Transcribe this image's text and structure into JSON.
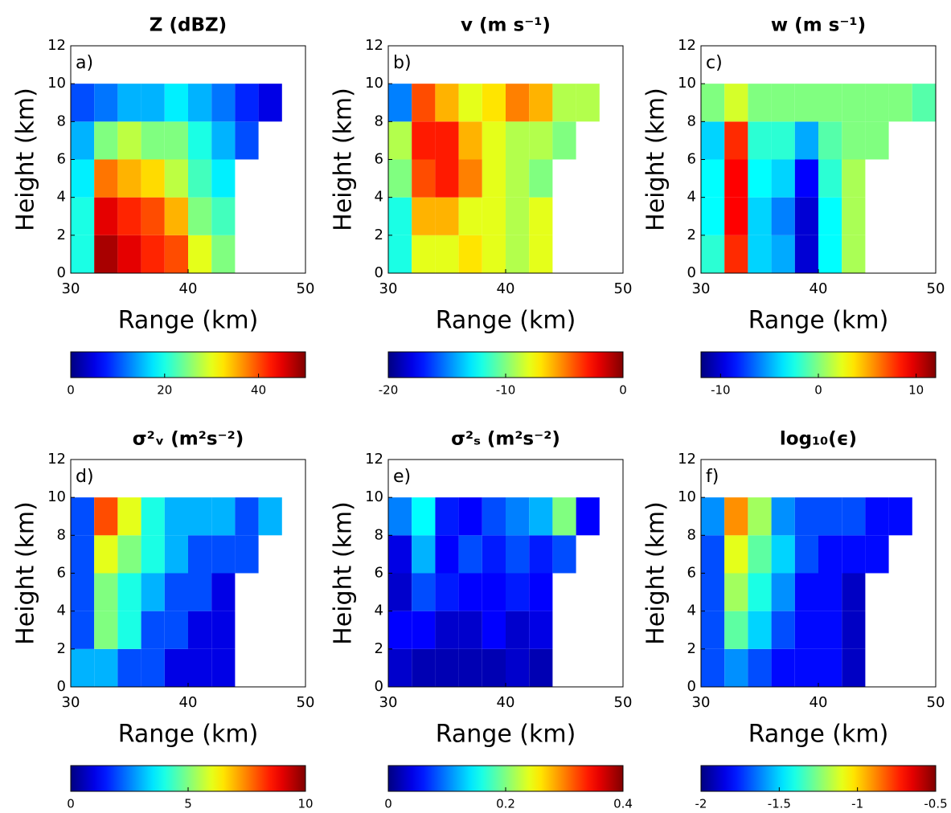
{
  "chart_data": [
    {
      "type": "heatmap",
      "title": "Z  (dBZ)",
      "panel_label": "a)",
      "x_label": "Range (km)",
      "y_label": "Height (km)",
      "xlim": [
        30,
        50
      ],
      "xticks": [
        30,
        40,
        50
      ],
      "ylim": [
        0,
        12
      ],
      "yticks": [
        0,
        2,
        4,
        6,
        8,
        10,
        12
      ],
      "x": [
        31,
        33,
        35,
        37,
        39,
        41,
        43,
        45,
        47,
        49
      ],
      "y": [
        1,
        3,
        5,
        7,
        9,
        11
      ],
      "z": [
        [
          20,
          48,
          45,
          42,
          40,
          30,
          25,
          null,
          null,
          null
        ],
        [
          20,
          45,
          42,
          40,
          35,
          25,
          22,
          null,
          null,
          null
        ],
        [
          18,
          38,
          35,
          33,
          28,
          22,
          18,
          null,
          null,
          null
        ],
        [
          15,
          25,
          28,
          25,
          25,
          20,
          15,
          10,
          null,
          null
        ],
        [
          10,
          12,
          15,
          15,
          18,
          15,
          12,
          8,
          5,
          null
        ],
        [
          null,
          null,
          null,
          null,
          null,
          null,
          null,
          null,
          null,
          null
        ]
      ],
      "colormap": "jet",
      "clim": [
        0,
        50
      ],
      "cticks": [
        0,
        20,
        40
      ]
    },
    {
      "type": "heatmap",
      "title": "v  (m s⁻¹)",
      "panel_label": "b)",
      "x_label": "Range (km)",
      "y_label": "Height (km)",
      "xlim": [
        30,
        50
      ],
      "xticks": [
        30,
        40,
        50
      ],
      "ylim": [
        0,
        12
      ],
      "yticks": [
        0,
        2,
        4,
        6,
        8,
        10,
        12
      ],
      "x": [
        31,
        33,
        35,
        37,
        39,
        41,
        43,
        45,
        47,
        49
      ],
      "y": [
        1,
        3,
        5,
        7,
        9,
        11
      ],
      "z": [
        [
          -12,
          -8,
          -8,
          -7,
          -8,
          -9,
          -8,
          null,
          null,
          null
        ],
        [
          -12,
          -6,
          -6,
          -8,
          -8,
          -9,
          -8,
          null,
          null,
          null
        ],
        [
          -10,
          -4,
          -3,
          -5,
          -8,
          -9,
          -10,
          null,
          null,
          null
        ],
        [
          -9,
          -3,
          -3,
          -6,
          -8,
          -9,
          -9,
          -10,
          null,
          null
        ],
        [
          -15,
          -4,
          -6,
          -8,
          -7,
          -5,
          -6,
          -9,
          -9,
          null
        ],
        [
          null,
          null,
          null,
          null,
          null,
          null,
          null,
          null,
          null,
          null
        ]
      ],
      "colormap": "jet",
      "clim": [
        -20,
        0
      ],
      "cticks": [
        -20,
        -10,
        0
      ]
    },
    {
      "type": "heatmap",
      "title": "w  (m s⁻¹)",
      "panel_label": "c)",
      "x_label": "Range (km)",
      "y_label": "Height (km)",
      "xlim": [
        30,
        50
      ],
      "xticks": [
        30,
        40,
        50
      ],
      "ylim": [
        0,
        12
      ],
      "yticks": [
        0,
        2,
        4,
        6,
        8,
        10,
        12
      ],
      "x": [
        31,
        33,
        35,
        37,
        39,
        41,
        43,
        45,
        47,
        49
      ],
      "y": [
        1,
        3,
        5,
        7,
        9,
        11
      ],
      "z": [
        [
          -2,
          8,
          -4,
          -5,
          -10,
          -3,
          1,
          null,
          null,
          null
        ],
        [
          -3,
          9,
          -4,
          -6,
          -10,
          -3,
          1,
          null,
          null,
          null
        ],
        [
          -3,
          9,
          -3,
          -4,
          -9,
          -2,
          1,
          null,
          null,
          null
        ],
        [
          -4,
          8,
          -2,
          -2,
          -5,
          -1,
          0,
          0,
          null,
          null
        ],
        [
          0,
          2,
          0,
          0,
          0,
          0,
          0,
          0,
          0,
          -1
        ],
        [
          null,
          null,
          null,
          null,
          null,
          null,
          null,
          null,
          null,
          null
        ]
      ],
      "colormap": "jet",
      "clim": [
        -12,
        12
      ],
      "cticks": [
        -10,
        0,
        10
      ]
    },
    {
      "type": "heatmap",
      "title": "σ²ᵥ  (m²s⁻²)",
      "panel_label": "d)",
      "x_label": "Range (km)",
      "y_label": "Height (km)",
      "xlim": [
        30,
        50
      ],
      "xticks": [
        30,
        40,
        50
      ],
      "ylim": [
        0,
        12
      ],
      "yticks": [
        0,
        2,
        4,
        6,
        8,
        10,
        12
      ],
      "x": [
        31,
        33,
        35,
        37,
        39,
        41,
        43,
        45,
        47,
        49
      ],
      "y": [
        1,
        3,
        5,
        7,
        9,
        11
      ],
      "z": [
        [
          3,
          3,
          2,
          2,
          1,
          1,
          1,
          null,
          null,
          null
        ],
        [
          2,
          5,
          4,
          2,
          2,
          1,
          1,
          null,
          null,
          null
        ],
        [
          2,
          5,
          4,
          3,
          2,
          2,
          1,
          null,
          null,
          null
        ],
        [
          2,
          6,
          5,
          4,
          3,
          2,
          2,
          2,
          null,
          null
        ],
        [
          2,
          8,
          6,
          4,
          3,
          3,
          3,
          2,
          3,
          null
        ],
        [
          null,
          null,
          null,
          null,
          null,
          null,
          null,
          null,
          null,
          null
        ]
      ],
      "colormap": "jet",
      "clim": [
        0,
        10
      ],
      "cticks": [
        0,
        5,
        10
      ]
    },
    {
      "type": "heatmap",
      "title": "σ²ₛ  (m²s⁻²)",
      "panel_label": "e)",
      "x_label": "Range (km)",
      "y_label": "Height (km)",
      "xlim": [
        30,
        50
      ],
      "xticks": [
        30,
        40,
        50
      ],
      "ylim": [
        0,
        12
      ],
      "yticks": [
        0,
        2,
        4,
        6,
        8,
        10,
        12
      ],
      "x": [
        31,
        33,
        35,
        37,
        39,
        41,
        43,
        45,
        47,
        49
      ],
      "y": [
        1,
        3,
        5,
        7,
        9,
        11
      ],
      "z": [
        [
          0.03,
          0.02,
          0.02,
          0.02,
          0.02,
          0.03,
          0.02,
          null,
          null,
          null
        ],
        [
          0.05,
          0.05,
          0.03,
          0.03,
          0.05,
          0.03,
          0.04,
          null,
          null,
          null
        ],
        [
          0.03,
          0.08,
          0.06,
          0.05,
          0.05,
          0.06,
          0.05,
          null,
          null,
          null
        ],
        [
          0.04,
          0.12,
          0.05,
          0.08,
          0.06,
          0.08,
          0.06,
          0.08,
          null,
          null
        ],
        [
          0.1,
          0.15,
          0.06,
          0.05,
          0.08,
          0.1,
          0.12,
          0.2,
          0.05,
          null
        ],
        [
          null,
          null,
          null,
          null,
          null,
          null,
          null,
          null,
          null,
          null
        ]
      ],
      "colormap": "jet",
      "clim": [
        0,
        0.4
      ],
      "cticks": [
        0,
        0.2,
        0.4
      ]
    },
    {
      "type": "heatmap",
      "title": "log₁₀(ϵ)",
      "panel_label": "f)",
      "x_label": "Range (km)",
      "y_label": "Height (km)",
      "xlim": [
        30,
        50
      ],
      "xticks": [
        30,
        40,
        50
      ],
      "ylim": [
        0,
        12
      ],
      "yticks": [
        0,
        2,
        4,
        6,
        8,
        10,
        12
      ],
      "x": [
        31,
        33,
        35,
        37,
        39,
        41,
        43,
        45,
        47,
        49
      ],
      "y": [
        1,
        3,
        5,
        7,
        9,
        11
      ],
      "z": [
        [
          -1.7,
          -1.6,
          -1.7,
          -1.8,
          -1.8,
          -1.8,
          -1.9,
          null,
          null,
          null
        ],
        [
          -1.7,
          -1.3,
          -1.5,
          -1.7,
          -1.8,
          -1.8,
          -1.9,
          null,
          null,
          null
        ],
        [
          -1.7,
          -1.2,
          -1.4,
          -1.6,
          -1.8,
          -1.8,
          -1.9,
          null,
          null,
          null
        ],
        [
          -1.7,
          -1.1,
          -1.3,
          -1.5,
          -1.7,
          -1.8,
          -1.8,
          -1.8,
          null,
          null
        ],
        [
          -1.6,
          -0.9,
          -1.2,
          -1.6,
          -1.7,
          -1.7,
          -1.7,
          -1.8,
          -1.8,
          null
        ],
        [
          null,
          null,
          null,
          null,
          null,
          null,
          null,
          null,
          null,
          null
        ]
      ],
      "colormap": "jet",
      "clim": [
        -2,
        -0.5
      ],
      "cticks": [
        -2,
        -1.5,
        -1,
        -0.5
      ]
    }
  ]
}
